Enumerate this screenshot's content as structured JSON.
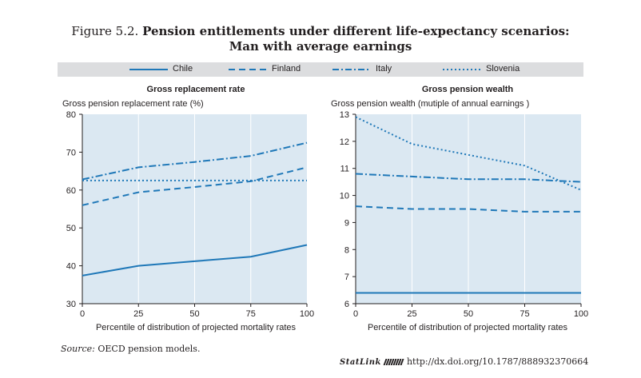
{
  "figure": {
    "number": "Figure 5.2.",
    "title_line1": "Pension entitlements under different life-expectancy scenarios:",
    "title_line2": "Man with average earnings"
  },
  "legend": {
    "items": [
      {
        "label": "Chile",
        "style": "solid"
      },
      {
        "label": "Finland",
        "style": "dashed"
      },
      {
        "label": "Italy",
        "style": "dashdot"
      },
      {
        "label": "Slovenia",
        "style": "dotted"
      }
    ]
  },
  "colors": {
    "series": "#1f78b8",
    "plot_bg": "#dbe8f2",
    "legend_bg": "#dcdddf",
    "text": "#231f20"
  },
  "chart_data": [
    {
      "type": "line",
      "title": "Gross replacement rate",
      "ylabel": "Gross pension replacement rate (%)",
      "xlabel": "Percentile of distribution of projected mortality rates",
      "x": [
        0,
        25,
        50,
        75,
        100
      ],
      "xticks": [
        "0",
        "25",
        "50",
        "75",
        "100"
      ],
      "ylim": [
        30,
        80
      ],
      "yticks": [
        30,
        40,
        50,
        60,
        70,
        80
      ],
      "grid": "vertical",
      "series": [
        {
          "name": "Chile",
          "style": "solid",
          "values": [
            37.4,
            40.0,
            41.2,
            42.4,
            45.5
          ]
        },
        {
          "name": "Finland",
          "style": "dashed",
          "values": [
            56.0,
            59.4,
            60.8,
            62.3,
            66.0
          ]
        },
        {
          "name": "Italy",
          "style": "dashdot",
          "values": [
            62.8,
            66.0,
            67.4,
            69.0,
            72.5
          ]
        },
        {
          "name": "Slovenia",
          "style": "dotted",
          "values": [
            62.5,
            62.5,
            62.5,
            62.5,
            62.5
          ]
        }
      ]
    },
    {
      "type": "line",
      "title": "Gross pension wealth",
      "ylabel": "Gross pension wealth (mutiple of annual earnings )",
      "xlabel": "Percentile of distribution of projected mortality rates",
      "x": [
        0,
        25,
        50,
        75,
        100
      ],
      "xticks": [
        "0",
        "25",
        "50",
        "75",
        "100"
      ],
      "ylim": [
        6,
        13
      ],
      "yticks": [
        6,
        7,
        8,
        9,
        10,
        11,
        12,
        13
      ],
      "grid": "vertical",
      "series": [
        {
          "name": "Chile",
          "style": "solid",
          "values": [
            6.4,
            6.4,
            6.4,
            6.4,
            6.4
          ]
        },
        {
          "name": "Finland",
          "style": "dashed",
          "values": [
            9.6,
            9.5,
            9.5,
            9.4,
            9.4
          ]
        },
        {
          "name": "Italy",
          "style": "dashdot",
          "values": [
            10.8,
            10.7,
            10.6,
            10.6,
            10.5
          ]
        },
        {
          "name": "Slovenia",
          "style": "dotted",
          "values": [
            12.9,
            11.9,
            11.5,
            11.1,
            10.2
          ]
        }
      ]
    }
  ],
  "source": {
    "label": "Source:",
    "text": " OECD pension models."
  },
  "statlink": {
    "brand": "StatLink",
    "url": "http://dx.doi.org/10.1787/888932370664"
  }
}
